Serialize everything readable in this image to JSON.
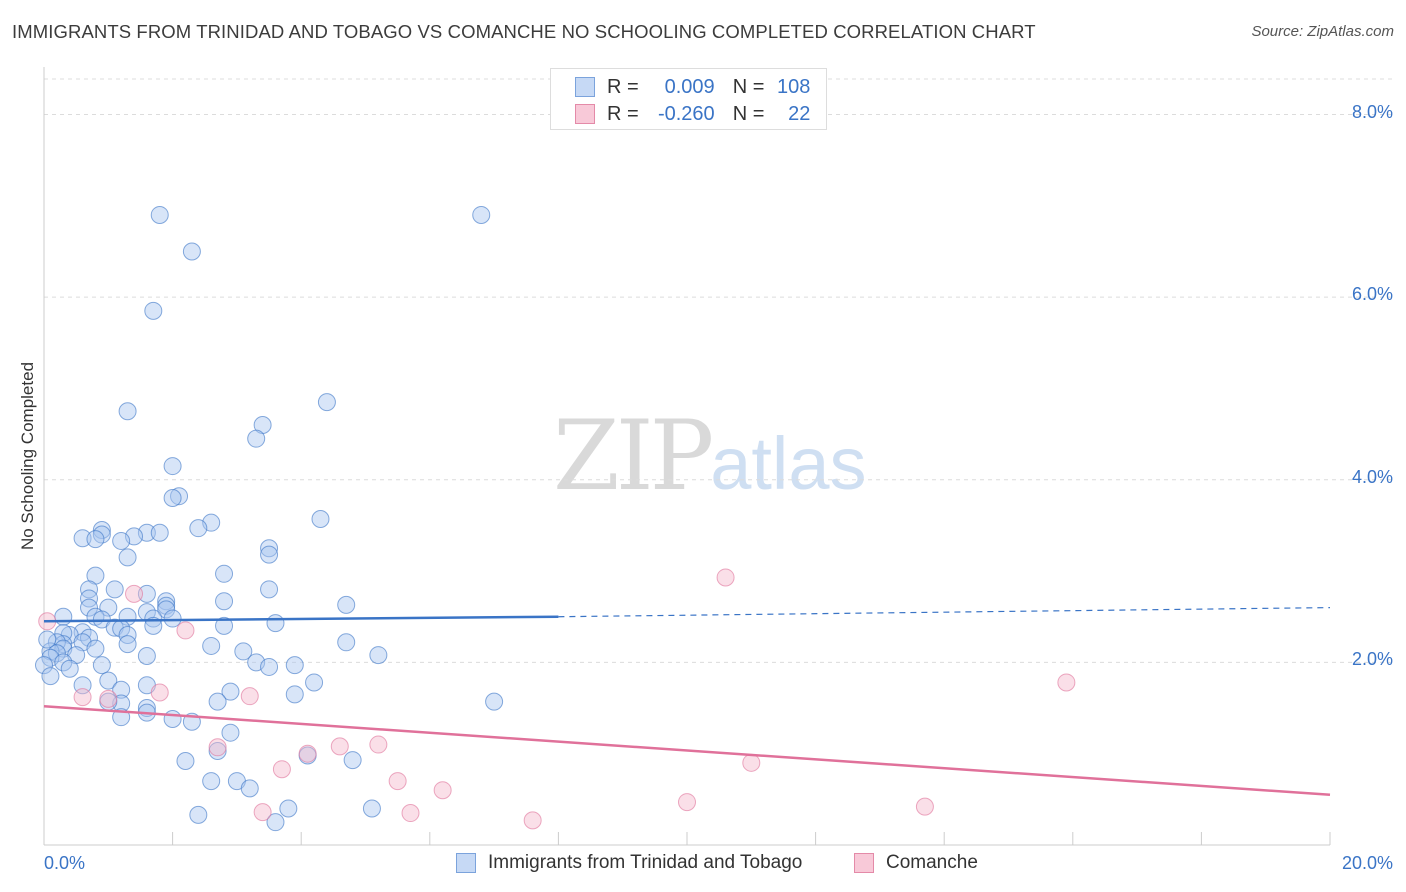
{
  "title": "IMMIGRANTS FROM TRINIDAD AND TOBAGO VS COMANCHE NO SCHOOLING COMPLETED CORRELATION CHART",
  "source": "Source: ZipAtlas.com",
  "watermark": {
    "zip": "ZIP",
    "atlas": "atlas"
  },
  "legend": {
    "r_label": "R =",
    "n_label": "N =",
    "rows": [
      {
        "r": "0.009",
        "n": "108",
        "fill": "#c6d9f5",
        "stroke": "#7ba3dc"
      },
      {
        "r": "-0.260",
        "n": "22",
        "fill": "#f8c9d8",
        "stroke": "#e48aa8"
      }
    ]
  },
  "chart_data": {
    "type": "scatter",
    "title": "IMMIGRANTS FROM TRINIDAD AND TOBAGO VS COMANCHE NO SCHOOLING COMPLETED CORRELATION CHART",
    "xlabel": "",
    "ylabel": "No Schooling Completed",
    "xlim": [
      0,
      20
    ],
    "ylim": [
      0,
      8.4
    ],
    "x_tick_labels": [
      "0.0%",
      "20.0%"
    ],
    "y_ticks": [
      2,
      4,
      6,
      8
    ],
    "y_tick_labels": [
      "2.0%",
      "4.0%",
      "6.0%",
      "8.0%"
    ],
    "grid": true,
    "legend_position": "top-center",
    "series": [
      {
        "name": "Immigrants from Trinidad and Tobago",
        "color": "#3a74c6",
        "fill": "#a9c6ef",
        "r": 0.009,
        "n": 108,
        "trend": {
          "x": [
            0,
            8
          ],
          "y": [
            2.45,
            2.5
          ],
          "dashed_x": [
            8,
            20
          ],
          "dashed_y": [
            2.5,
            2.6
          ]
        },
        "points": [
          [
            1.8,
            6.9
          ],
          [
            2.3,
            6.5
          ],
          [
            1.7,
            5.85
          ],
          [
            6.8,
            6.9
          ],
          [
            1.3,
            4.75
          ],
          [
            4.4,
            4.85
          ],
          [
            3.4,
            4.6
          ],
          [
            3.3,
            4.45
          ],
          [
            2.0,
            4.15
          ],
          [
            2.1,
            3.82
          ],
          [
            2.0,
            3.8
          ],
          [
            4.3,
            3.57
          ],
          [
            2.6,
            3.53
          ],
          [
            2.4,
            3.47
          ],
          [
            0.9,
            3.45
          ],
          [
            0.9,
            3.4
          ],
          [
            1.6,
            3.42
          ],
          [
            1.8,
            3.42
          ],
          [
            1.4,
            3.38
          ],
          [
            0.6,
            3.36
          ],
          [
            0.8,
            3.35
          ],
          [
            1.2,
            3.33
          ],
          [
            3.5,
            3.25
          ],
          [
            3.5,
            3.18
          ],
          [
            1.3,
            3.15
          ],
          [
            2.8,
            2.97
          ],
          [
            0.8,
            2.95
          ],
          [
            0.7,
            2.8
          ],
          [
            3.5,
            2.8
          ],
          [
            1.1,
            2.8
          ],
          [
            1.6,
            2.75
          ],
          [
            0.7,
            2.7
          ],
          [
            1.9,
            2.67
          ],
          [
            2.8,
            2.67
          ],
          [
            1.9,
            2.62
          ],
          [
            4.7,
            2.63
          ],
          [
            1.9,
            2.58
          ],
          [
            1.0,
            2.6
          ],
          [
            0.7,
            2.6
          ],
          [
            1.6,
            2.55
          ],
          [
            1.3,
            2.5
          ],
          [
            0.8,
            2.5
          ],
          [
            0.3,
            2.5
          ],
          [
            1.7,
            2.48
          ],
          [
            2.0,
            2.48
          ],
          [
            0.9,
            2.47
          ],
          [
            3.6,
            2.43
          ],
          [
            1.7,
            2.4
          ],
          [
            2.8,
            2.4
          ],
          [
            1.1,
            2.38
          ],
          [
            1.2,
            2.37
          ],
          [
            0.6,
            2.33
          ],
          [
            0.4,
            2.3
          ],
          [
            0.3,
            2.32
          ],
          [
            1.3,
            2.3
          ],
          [
            0.7,
            2.27
          ],
          [
            0.6,
            2.22
          ],
          [
            1.3,
            2.2
          ],
          [
            0.3,
            2.2
          ],
          [
            0.2,
            2.22
          ],
          [
            4.7,
            2.22
          ],
          [
            2.6,
            2.18
          ],
          [
            0.8,
            2.15
          ],
          [
            0.3,
            2.15
          ],
          [
            0.1,
            2.12
          ],
          [
            0.2,
            2.1
          ],
          [
            0.5,
            2.08
          ],
          [
            1.6,
            2.07
          ],
          [
            3.1,
            2.12
          ],
          [
            0.1,
            2.05
          ],
          [
            5.2,
            2.08
          ],
          [
            3.3,
            2.0
          ],
          [
            0.3,
            2.0
          ],
          [
            0.0,
            1.97
          ],
          [
            3.5,
            1.95
          ],
          [
            3.9,
            1.97
          ],
          [
            0.9,
            1.97
          ],
          [
            0.4,
            1.93
          ],
          [
            0.1,
            1.85
          ],
          [
            1.0,
            1.8
          ],
          [
            4.2,
            1.78
          ],
          [
            0.6,
            1.75
          ],
          [
            1.6,
            1.75
          ],
          [
            1.2,
            1.7
          ],
          [
            2.9,
            1.68
          ],
          [
            3.9,
            1.65
          ],
          [
            2.7,
            1.57
          ],
          [
            1.2,
            1.55
          ],
          [
            1.0,
            1.57
          ],
          [
            7.0,
            1.57
          ],
          [
            1.6,
            1.5
          ],
          [
            1.6,
            1.45
          ],
          [
            1.2,
            1.4
          ],
          [
            2.0,
            1.38
          ],
          [
            2.3,
            1.35
          ],
          [
            2.9,
            1.23
          ],
          [
            2.7,
            1.03
          ],
          [
            4.1,
            0.98
          ],
          [
            2.2,
            0.92
          ],
          [
            4.8,
            0.93
          ],
          [
            2.6,
            0.7
          ],
          [
            3.0,
            0.7
          ],
          [
            3.2,
            0.62
          ],
          [
            5.1,
            0.4
          ],
          [
            3.8,
            0.4
          ],
          [
            2.4,
            0.33
          ],
          [
            3.6,
            0.25
          ],
          [
            0.05,
            2.25
          ]
        ]
      },
      {
        "name": "Comanche",
        "color": "#e0719a",
        "fill": "#f5b8cc",
        "r": -0.26,
        "n": 22,
        "trend": {
          "x": [
            0,
            20
          ],
          "y": [
            1.52,
            0.55
          ]
        },
        "points": [
          [
            0.05,
            2.45
          ],
          [
            1.4,
            2.75
          ],
          [
            2.2,
            2.35
          ],
          [
            10.6,
            2.93
          ],
          [
            15.9,
            1.78
          ],
          [
            0.6,
            1.62
          ],
          [
            1.0,
            1.6
          ],
          [
            1.8,
            1.67
          ],
          [
            3.2,
            1.63
          ],
          [
            2.7,
            1.07
          ],
          [
            5.2,
            1.1
          ],
          [
            4.6,
            1.08
          ],
          [
            4.1,
            1.0
          ],
          [
            11.0,
            0.9
          ],
          [
            3.7,
            0.83
          ],
          [
            5.5,
            0.7
          ],
          [
            6.2,
            0.6
          ],
          [
            10.0,
            0.47
          ],
          [
            13.7,
            0.42
          ],
          [
            3.4,
            0.36
          ],
          [
            5.7,
            0.35
          ],
          [
            7.6,
            0.27
          ]
        ]
      }
    ]
  }
}
